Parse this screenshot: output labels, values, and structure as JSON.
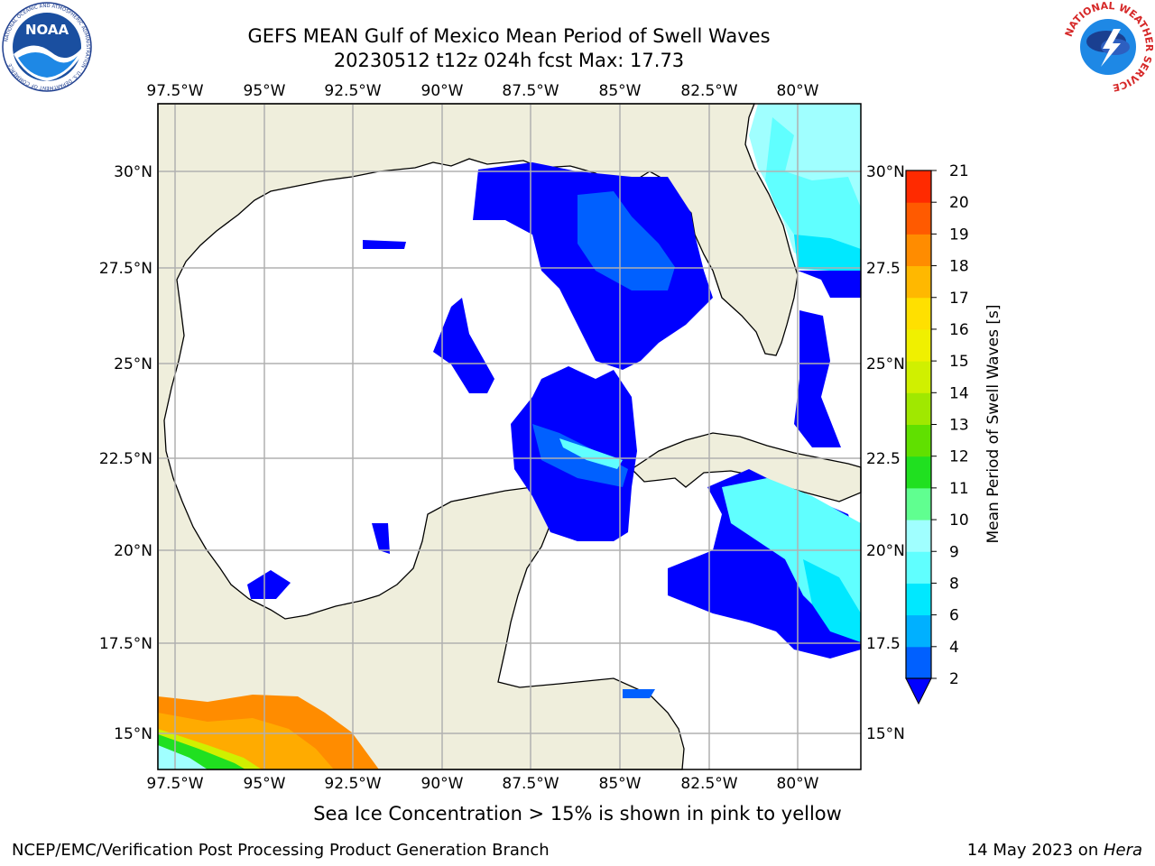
{
  "title": {
    "line1": "GEFS MEAN Gulf of Mexico Mean Period of Swell Waves",
    "line2": "20230512 t12z 024h fcst   Max: 17.73"
  },
  "logos": {
    "left": "noaa-logo",
    "left_text": "NOAA",
    "left_ring_text": "NATIONAL OCEANIC AND ATMOSPHERIC ADMINISTRATION · U.S. DEPARTMENT OF COMMERCE",
    "right": "nws-logo",
    "right_ring_text": "NATIONAL WEATHER SERVICE"
  },
  "map": {
    "lon_labels": [
      "97.5°W",
      "95°W",
      "92.5°W",
      "90°W",
      "87.5°W",
      "85°W",
      "82.5°W",
      "80°W"
    ],
    "lat_labels": [
      "30°N",
      "27.5°N",
      "25°N",
      "22.5°N",
      "20°N",
      "17.5°N",
      "15°N"
    ],
    "lat_labels_right": [
      "30°N",
      "27.5",
      "25°N",
      "22.5",
      "20°N",
      "17.5",
      "15°N"
    ],
    "colors": {
      "land": "#efeedc",
      "ocean": "#ffffff",
      "grid": "#b0b0b0"
    }
  },
  "colorbar": {
    "label": "Mean Period of Swell Waves [s]",
    "ticks": [
      "2",
      "4",
      "6",
      "8",
      "9",
      "10",
      "11",
      "12",
      "13",
      "14",
      "15",
      "16",
      "17",
      "18",
      "19",
      "20",
      "21"
    ],
    "colors": [
      "#0060ff",
      "#00b0ff",
      "#00e8ff",
      "#60ffff",
      "#a0ffff",
      "#60ff90",
      "#20e020",
      "#60e000",
      "#a0e800",
      "#d0f000",
      "#f0f000",
      "#ffe000",
      "#ffb800",
      "#ff8c00",
      "#ff5a00",
      "#ff2a00",
      "#ff0000"
    ],
    "under_color": "#0000ff"
  },
  "note": "Sea Ice Concentration > 15% is shown in pink to yellow",
  "footer": {
    "left": "NCEP/EMC/Verification Post Processing Product Generation Branch",
    "right_date": "14 May 2023 on ",
    "right_machine": "Hera"
  }
}
